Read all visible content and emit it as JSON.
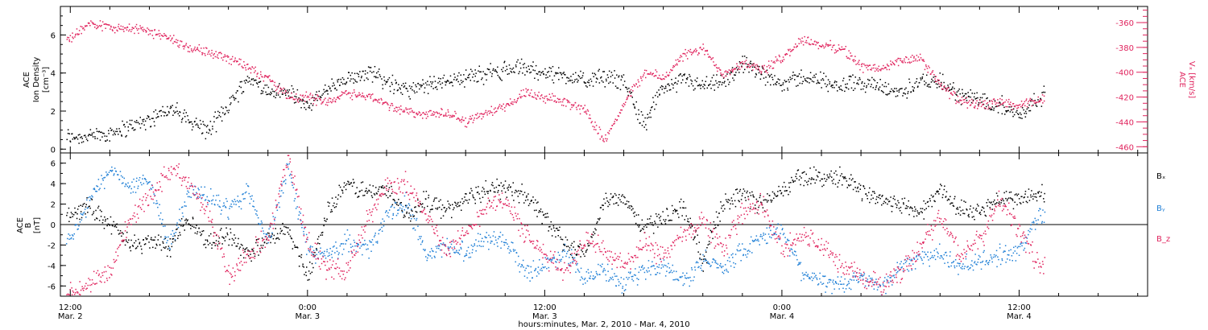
{
  "colors": {
    "black": "#000000",
    "red": "#e0245e",
    "blue": "#1f7fd6"
  },
  "top_panel": {
    "left_label_lines": [
      "ACE",
      "Ion Density",
      "[cm⁻³]"
    ],
    "right_label_lines": [
      "ACE",
      "Vₓ [km/s]"
    ],
    "left_ticks": [
      "0",
      "2",
      "4",
      "6"
    ],
    "right_ticks": [
      "-360",
      "-380",
      "-400",
      "-420",
      "-440",
      "-460"
    ]
  },
  "bottom_panel": {
    "left_label_lines": [
      "ACE",
      "B",
      "[nT]"
    ],
    "left_ticks": [
      "6",
      "4",
      "2",
      "0",
      "-2",
      "-4",
      "-6"
    ],
    "legend": [
      "Bₓ",
      "Bᵧ",
      "B_z"
    ]
  },
  "x_axis": {
    "tick_labels": [
      {
        "time": "12:00",
        "date": "Mar. 2"
      },
      {
        "time": "0:00",
        "date": "Mar. 3"
      },
      {
        "time": "12:00",
        "date": "Mar. 3"
      },
      {
        "time": "0:00",
        "date": "Mar. 4"
      },
      {
        "time": "12:00",
        "date": "Mar. 4"
      }
    ],
    "caption": "hours:minutes, Mar. 2, 2010 - Mar. 4, 2010"
  },
  "chart_data": [
    {
      "type": "scatter",
      "ylim_left": [
        -0.2,
        7.5
      ],
      "ylim_right": [
        -465,
        -347
      ],
      "x_range_hours": [
        -0.5,
        54.5
      ],
      "series": [
        {
          "color": "#000000",
          "axis": "left",
          "x": [
            0,
            1,
            2,
            3,
            4,
            5,
            6,
            7,
            8,
            9,
            10,
            11,
            12,
            13,
            14,
            15,
            16,
            17,
            18,
            19,
            20,
            21,
            22,
            23,
            24,
            25,
            26,
            27,
            28,
            29,
            30,
            31,
            32,
            33,
            34,
            35,
            36,
            37,
            38,
            39,
            40,
            41,
            42,
            43,
            44,
            45,
            46,
            47,
            48,
            49
          ],
          "values": [
            0.7,
            0.7,
            0.9,
            1.2,
            1.6,
            2.2,
            1.5,
            1.0,
            2.4,
            3.8,
            3.0,
            3.0,
            2.3,
            3.2,
            3.6,
            4.2,
            3.6,
            3.1,
            3.3,
            3.7,
            3.8,
            4.0,
            4.2,
            4.3,
            4.0,
            3.9,
            3.6,
            3.8,
            3.6,
            1.3,
            3.3,
            3.7,
            3.3,
            3.5,
            4.5,
            3.9,
            3.5,
            3.8,
            3.6,
            3.4,
            3.6,
            3.2,
            3.0,
            3.6,
            3.5,
            2.9,
            2.6,
            2.4,
            1.8,
            2.8
          ]
        },
        {
          "color": "#e0245e",
          "axis": "right",
          "x": [
            0,
            1,
            2,
            3,
            4,
            5,
            6,
            7,
            8,
            9,
            10,
            11,
            12,
            13,
            14,
            15,
            16,
            17,
            18,
            19,
            20,
            21,
            22,
            23,
            24,
            25,
            26,
            27,
            28,
            29,
            30,
            31,
            32,
            33,
            34,
            35,
            36,
            37,
            38,
            39,
            40,
            41,
            42,
            43,
            44,
            45,
            46,
            47,
            48,
            49
          ],
          "values": [
            -372,
            -360,
            -363,
            -364,
            -367,
            -372,
            -380,
            -384,
            -388,
            -395,
            -405,
            -420,
            -420,
            -423,
            -416,
            -419,
            -425,
            -432,
            -433,
            -433,
            -439,
            -433,
            -426,
            -417,
            -421,
            -423,
            -430,
            -454,
            -425,
            -400,
            -404,
            -386,
            -381,
            -401,
            -392,
            -398,
            -388,
            -373,
            -378,
            -380,
            -395,
            -397,
            -390,
            -389,
            -410,
            -423,
            -426,
            -424,
            -427,
            -422
          ]
        }
      ]
    },
    {
      "type": "scatter",
      "ylim": [
        -7,
        7
      ],
      "x_range_hours": [
        -0.5,
        54.5
      ],
      "series": [
        {
          "name": "Bx",
          "color": "#000000",
          "x": [
            0,
            1,
            2,
            3,
            4,
            5,
            6,
            7,
            8,
            9,
            10,
            11,
            12,
            13,
            14,
            15,
            16,
            17,
            18,
            19,
            20,
            21,
            22,
            23,
            24,
            25,
            26,
            27,
            28,
            29,
            30,
            31,
            32,
            33,
            34,
            35,
            36,
            37,
            38,
            39,
            40,
            41,
            42,
            43,
            44,
            45,
            46,
            47,
            48,
            49
          ],
          "values": [
            1.2,
            1.8,
            0.2,
            -2.0,
            -1.5,
            -2.2,
            0.6,
            -1.8,
            -0.8,
            -2.8,
            -1.5,
            -0.5,
            -5.0,
            1.3,
            4.0,
            3.2,
            3.5,
            1.0,
            2.5,
            1.4,
            2.6,
            3.4,
            3.6,
            3.0,
            0.8,
            -2.0,
            -3.0,
            2.3,
            2.8,
            -0.4,
            0.8,
            1.8,
            -3.5,
            2.3,
            3.0,
            2.0,
            3.4,
            4.8,
            4.6,
            4.7,
            3.4,
            2.5,
            2.0,
            1.2,
            3.5,
            1.5,
            1.4,
            2.6,
            2.5,
            3.0
          ]
        },
        {
          "name": "By",
          "color": "#1f7fd6",
          "x": [
            0,
            1,
            2,
            3,
            4,
            5,
            6,
            7,
            8,
            9,
            10,
            11,
            12,
            13,
            14,
            15,
            16,
            17,
            18,
            19,
            20,
            21,
            22,
            23,
            24,
            25,
            26,
            27,
            28,
            29,
            30,
            31,
            32,
            33,
            34,
            35,
            36,
            37,
            38,
            39,
            40,
            41,
            42,
            43,
            44,
            45,
            46,
            47,
            48,
            49
          ],
          "values": [
            -1.5,
            2.6,
            5.4,
            3.8,
            4.2,
            -2.0,
            3.4,
            2.5,
            1.5,
            3.2,
            -1.5,
            5.6,
            -2.5,
            -3.0,
            -1.5,
            -2.5,
            0.8,
            2.4,
            -3.0,
            -2.0,
            -2.6,
            -1.2,
            -1.5,
            -4.5,
            -4.0,
            -2.5,
            -5.0,
            -4.5,
            -6.0,
            -4.5,
            -4.0,
            -5.5,
            -3.5,
            -4.0,
            -2.5,
            -1.0,
            -0.5,
            -4.5,
            -5.5,
            -6.0,
            -5.0,
            -6.2,
            -4.0,
            -3.0,
            -3.0,
            -4.0,
            -3.5,
            -3.0,
            -2.5,
            1.0
          ]
        },
        {
          "name": "Bz",
          "color": "#e0245e",
          "x": [
            0,
            1,
            2,
            3,
            4,
            5,
            6,
            7,
            8,
            9,
            10,
            11,
            12,
            13,
            14,
            15,
            16,
            17,
            18,
            19,
            20,
            21,
            22,
            23,
            24,
            25,
            26,
            27,
            28,
            29,
            30,
            31,
            32,
            33,
            34,
            35,
            36,
            37,
            38,
            39,
            40,
            41,
            42,
            43,
            44,
            45,
            46,
            47,
            48,
            49
          ],
          "values": [
            -6.5,
            -5.8,
            -4.5,
            0.5,
            3.0,
            5.4,
            4.5,
            1.0,
            -5.0,
            -3.0,
            -1.0,
            6.5,
            -1.5,
            -4.5,
            -4.2,
            0.5,
            3.8,
            4.0,
            1.0,
            -2.5,
            -1.0,
            2.0,
            2.5,
            -1.0,
            -3.0,
            -4.5,
            -1.5,
            -2.5,
            -4.0,
            -2.0,
            -3.0,
            -1.0,
            0.5,
            -2.5,
            1.5,
            2.0,
            -2.5,
            -1.0,
            -2.0,
            -4.0,
            -5.0,
            -6.0,
            -4.5,
            -2.0,
            1.0,
            -3.0,
            -1.5,
            2.5,
            -0.5,
            -4.0
          ]
        }
      ]
    }
  ]
}
